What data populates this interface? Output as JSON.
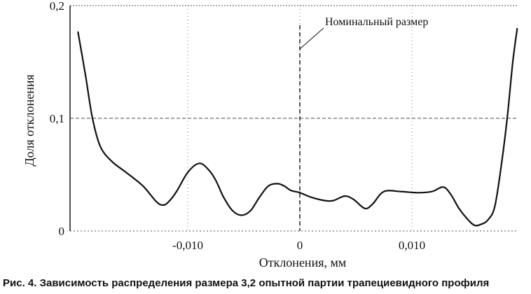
{
  "chart_data": {
    "type": "line",
    "title": "",
    "xlabel": "Отклонения, мм",
    "ylabel": "Доля отклонения",
    "xlim": [
      -0.0205,
      0.0195
    ],
    "ylim": [
      0,
      0.2
    ],
    "x_ticks": [
      {
        "value": -0.01,
        "label": "-0,010"
      },
      {
        "value": 0,
        "label": "0"
      },
      {
        "value": 0.01,
        "label": "0,010"
      }
    ],
    "y_ticks": [
      {
        "value": 0,
        "label": "0"
      },
      {
        "value": 0.1,
        "label": "0,1"
      },
      {
        "value": 0.2,
        "label": "0,2"
      }
    ],
    "grid": true,
    "annotation": {
      "label": "Номинальный размер",
      "x": 0
    },
    "series": [
      {
        "x": [
          -0.0198,
          -0.0195,
          -0.0191,
          -0.0185,
          -0.0178,
          -0.0168,
          -0.0155,
          -0.014,
          -0.0128,
          -0.0122,
          -0.0117,
          -0.011,
          -0.01,
          -0.009,
          -0.0082,
          -0.0075,
          -0.0068,
          -0.006,
          -0.0052,
          -0.0044,
          -0.0036,
          -0.0028,
          -0.002,
          -0.0014,
          -0.0008,
          0.0,
          0.001,
          0.0022,
          0.003,
          0.004,
          0.0048,
          0.0058,
          0.0065,
          0.0075,
          0.009,
          0.0105,
          0.0118,
          0.0128,
          0.0135,
          0.0142,
          0.015,
          0.0156,
          0.0162,
          0.0168,
          0.0174,
          0.018,
          0.0185,
          0.019,
          0.0194
        ],
        "values": [
          0.177,
          0.16,
          0.137,
          0.1,
          0.075,
          0.062,
          0.052,
          0.04,
          0.026,
          0.023,
          0.026,
          0.035,
          0.052,
          0.06,
          0.055,
          0.045,
          0.03,
          0.018,
          0.014,
          0.018,
          0.03,
          0.04,
          0.042,
          0.04,
          0.036,
          0.034,
          0.03,
          0.027,
          0.027,
          0.031,
          0.028,
          0.02,
          0.024,
          0.035,
          0.035,
          0.034,
          0.035,
          0.039,
          0.032,
          0.02,
          0.01,
          0.005,
          0.006,
          0.01,
          0.022,
          0.06,
          0.1,
          0.15,
          0.18
        ]
      }
    ]
  },
  "caption": "Рис. 4. Зависимость распределения размера 3,2 опытной партии трапециевидного профиля"
}
